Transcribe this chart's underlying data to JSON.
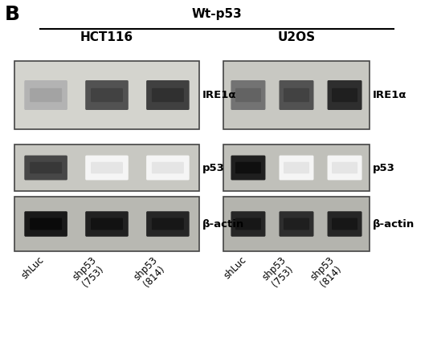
{
  "title_panel": "B",
  "title_main": "Wt-p53",
  "group_labels": [
    "HCT116",
    "U2OS"
  ],
  "x_tick_labels": [
    "shLuc",
    "shp53\n(753)",
    "shp53\n(814)"
  ],
  "row_labels": [
    "IRE1α",
    "p53",
    "β-actin"
  ],
  "background_color": "#ffffff",
  "hct116_ire1a_bg": "#d4d4ce",
  "hct116_p53_bg": "#c8c8c2",
  "hct116_actin_bg": "#b8b8b2",
  "u2os_ire1a_bg": "#c8c8c2",
  "u2os_p53_bg": "#c0c0ba",
  "u2os_actin_bg": "#b4b4ae",
  "hct116_ire1a": [
    0.3,
    0.68,
    0.75
  ],
  "hct116_p53": [
    0.72,
    0.04,
    0.04
  ],
  "hct116_actin": [
    0.9,
    0.87,
    0.85
  ],
  "u2os_ire1a": [
    0.55,
    0.68,
    0.82
  ],
  "u2os_p53": [
    0.88,
    0.04,
    0.04
  ],
  "u2os_actin": [
    0.85,
    0.82,
    0.85
  ],
  "panel_edge": "#444444",
  "band_edge": "none",
  "label_fontsize": 9.5,
  "group_fontsize": 11,
  "panel_label_fontsize": 18
}
